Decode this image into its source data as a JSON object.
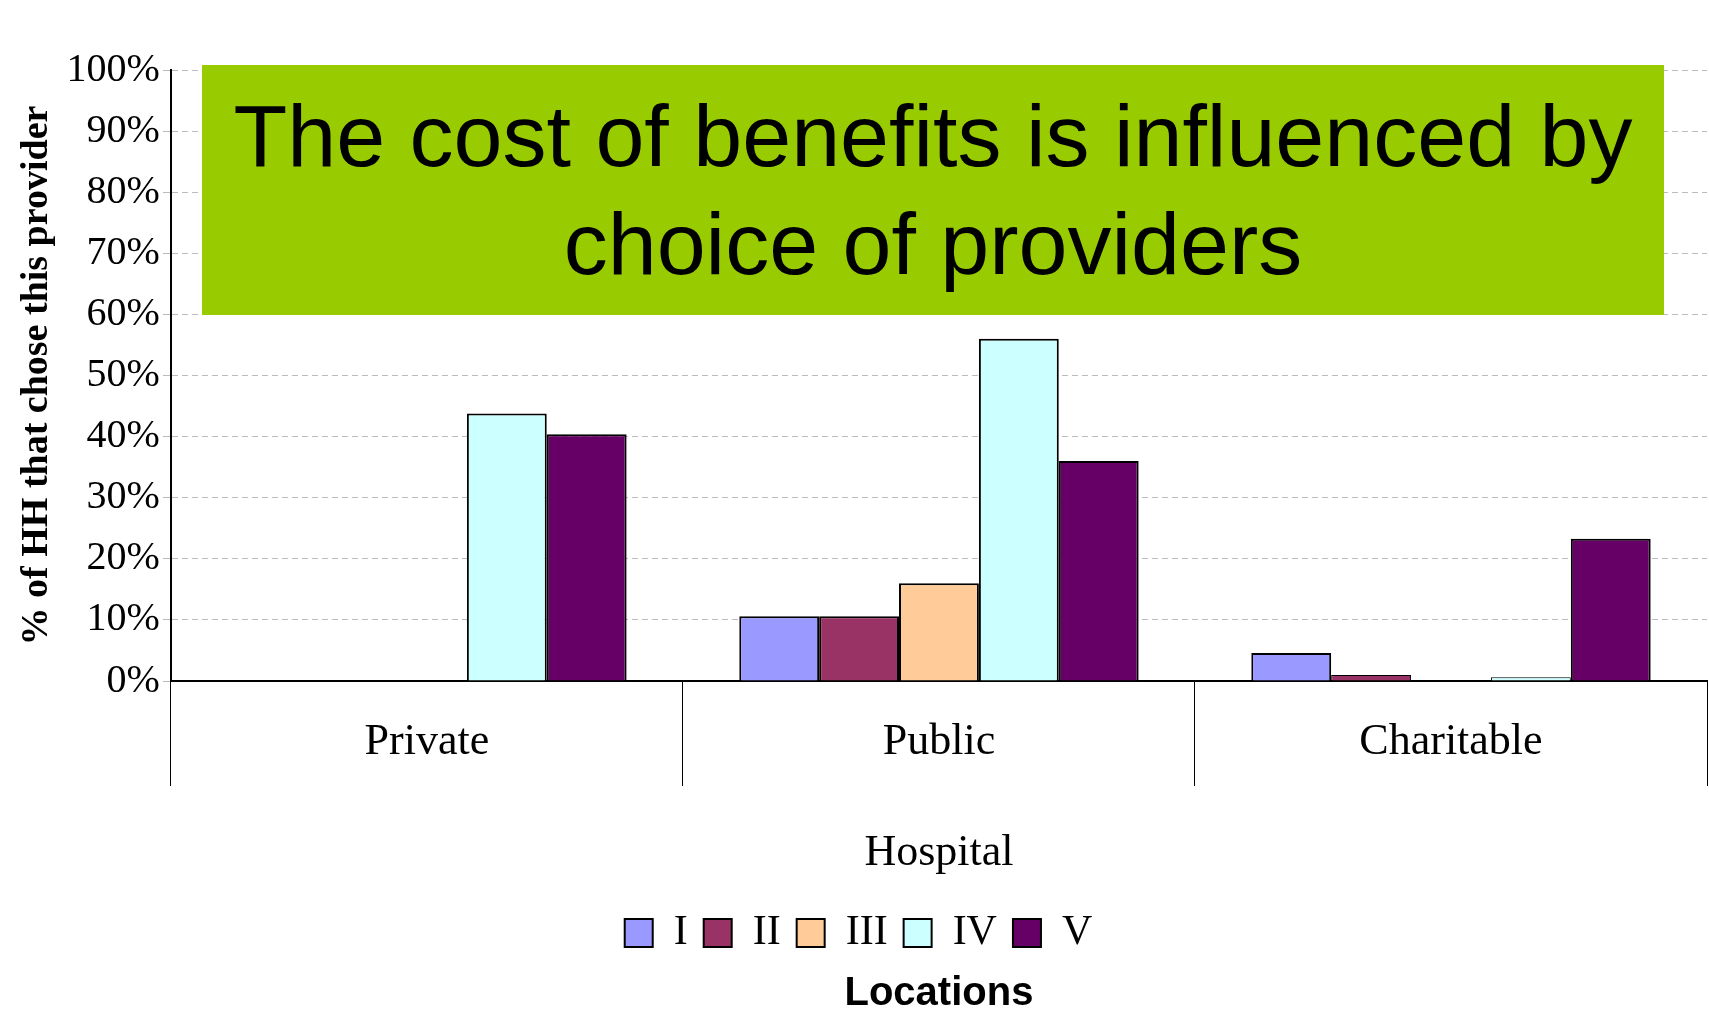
{
  "chart_data": {
    "type": "bar",
    "title": "The cost of benefits is influenced by choice of providers",
    "ylabel": "% of HH that chose this provider",
    "categories": [
      "Private",
      "Public",
      "Charitable"
    ],
    "series": [
      {
        "name": "I",
        "color": "#9999ff",
        "values": [
          null,
          10.6,
          4.6
        ]
      },
      {
        "name": "II",
        "color": "#993366",
        "values": [
          null,
          10.6,
          1.0
        ]
      },
      {
        "name": "III",
        "color": "#ffcc99",
        "values": [
          null,
          16,
          0
        ]
      },
      {
        "name": "IV",
        "color": "#ccffff",
        "values": [
          43.8,
          56,
          0.6
        ]
      },
      {
        "name": "V",
        "color": "#660066",
        "values": [
          40.4,
          36,
          23.3
        ]
      }
    ],
    "ylim": [
      0,
      100
    ],
    "yticks": [
      {
        "value": 0,
        "label": "0%"
      },
      {
        "value": 10,
        "label": "10%"
      },
      {
        "value": 20,
        "label": "20%"
      },
      {
        "value": 30,
        "label": "30%"
      },
      {
        "value": 40,
        "label": "40%"
      },
      {
        "value": 50,
        "label": "50%"
      },
      {
        "value": 60,
        "label": "60%"
      },
      {
        "value": 70,
        "label": "70%"
      },
      {
        "value": 80,
        "label": "80%"
      },
      {
        "value": 90,
        "label": "90%"
      },
      {
        "value": 100,
        "label": "100%"
      }
    ],
    "annotations": [
      "Hospital",
      "Locations"
    ],
    "grid": "y",
    "legend": "bottom"
  }
}
